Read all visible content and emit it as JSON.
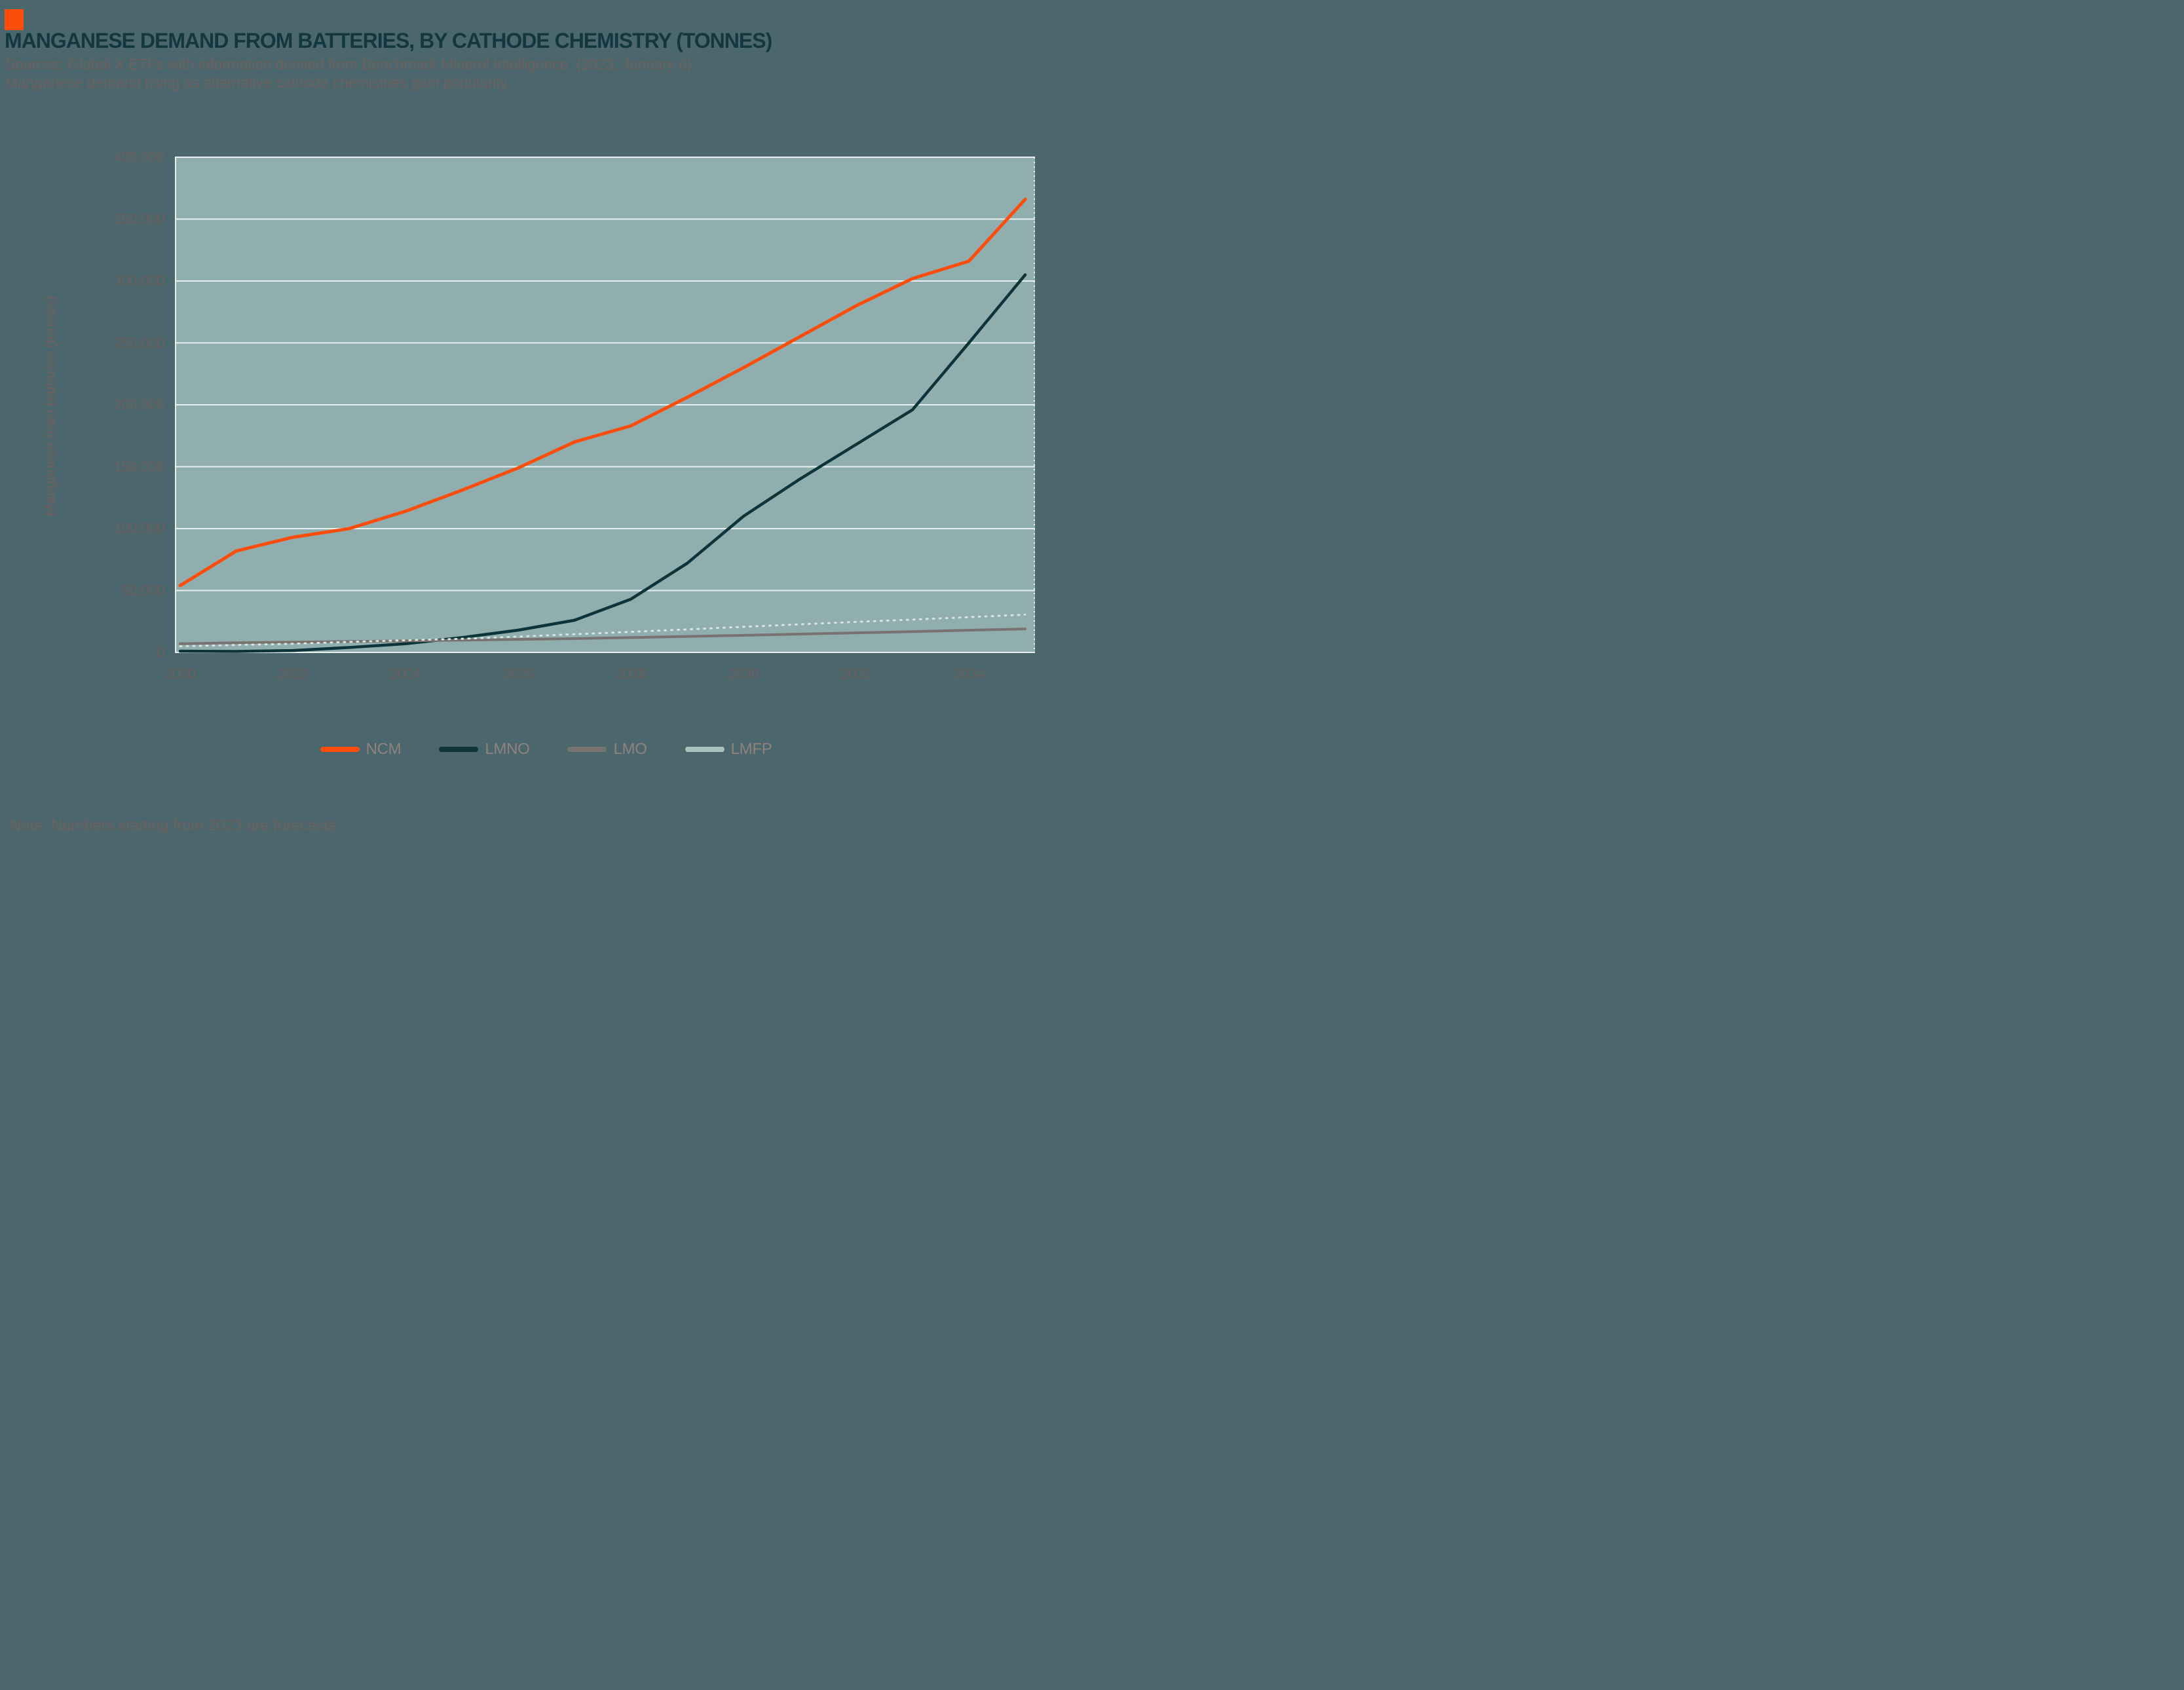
{
  "page": {
    "title": "MANGANESE DEMAND FROM BATTERIES, BY CATHODE CHEMISTRY (TONNES)",
    "source_line1": "Sources: Global X ETFs with information derived from Benchmark Mineral Intelligence. (2023, January 6).",
    "source_line2": "Manganese demand rising as alternative cathode chemistries gain popularity.",
    "note": "Note: Numbers starting from 2023 are forecasts.",
    "accent_color": "#FC4D0D"
  },
  "chart_data": {
    "type": "line",
    "title": "Manganese demand from batteries, by cathode chemistry (tonnes)",
    "xlabel": "",
    "ylabel": "Manganese from batteries (tonnes)",
    "ylim": [
      0,
      400000
    ],
    "ytick_step": 50000,
    "yticklabels": [
      "400,000",
      "350,000",
      "300,000",
      "250,000",
      "200,000",
      "150,000",
      "100,000",
      "50,000",
      "0"
    ],
    "xticks": [
      2020,
      2022,
      2024,
      2026,
      2028,
      2030,
      2032,
      2034
    ],
    "x": [
      2020,
      2021,
      2022,
      2023,
      2024,
      2025,
      2026,
      2027,
      2028,
      2029,
      2030,
      2031,
      2032,
      2033,
      2034,
      2035
    ],
    "grid": true,
    "legend_position": "bottom",
    "plot_bg": "#8FAEAD",
    "grid_color": "#E8EFEE",
    "series": [
      {
        "name": "NCM",
        "color": "#FC4D0D",
        "style": "solid",
        "width": 5,
        "values": [
          54000,
          82000,
          93000,
          100000,
          114000,
          131000,
          149000,
          170000,
          183000,
          206000,
          230000,
          255000,
          280000,
          302000,
          316000,
          366000
        ]
      },
      {
        "name": "LMNO",
        "color": "#0D333B",
        "style": "solid",
        "width": 4.5,
        "values": [
          1000,
          800,
          1500,
          4000,
          7000,
          12000,
          18000,
          26000,
          43000,
          72000,
          110000,
          140000,
          168000,
          196000,
          250000,
          305000
        ]
      },
      {
        "name": "LMO",
        "color": "#787270",
        "style": "solid",
        "width": 4,
        "values": [
          7000,
          7800,
          8300,
          8800,
          9300,
          9900,
          10500,
          11200,
          12000,
          12900,
          13800,
          14800,
          15800,
          16800,
          17900,
          19000
        ]
      },
      {
        "name": "LMFP",
        "color": "#D6E3DF",
        "legend_color": "#A7C3BD",
        "style": "dashed",
        "width": 3,
        "values": [
          5000,
          6000,
          7000,
          8500,
          9800,
          11000,
          12800,
          14700,
          16600,
          18600,
          20700,
          22700,
          24700,
          26500,
          28500,
          30500
        ]
      }
    ]
  }
}
